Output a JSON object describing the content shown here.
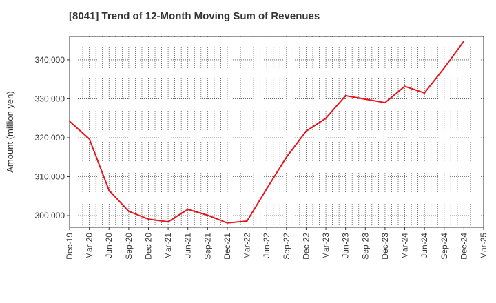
{
  "chart_data": {
    "type": "line",
    "title": "[8041]  Trend of 12-Month Moving Sum of Revenues",
    "xlabel": "",
    "ylabel": "Amount (million yen)",
    "x_ticks": [
      "Dec-19",
      "Mar-20",
      "Jun-20",
      "Sep-20",
      "Dec-20",
      "Mar-21",
      "Jun-21",
      "Sep-21",
      "Dec-21",
      "Mar-22",
      "Jun-22",
      "Sep-22",
      "Dec-22",
      "Mar-23",
      "Jun-23",
      "Sep-23",
      "Dec-23",
      "Mar-24",
      "Jun-24",
      "Sep-24",
      "Dec-24",
      "Mar-25"
    ],
    "y_ticks": [
      "300,000",
      "310,000",
      "320,000",
      "330,000",
      "340,000"
    ],
    "y_tick_values": [
      300000,
      310000,
      320000,
      330000,
      340000
    ],
    "ylim": [
      297000,
      346000
    ],
    "grid": true,
    "line_color": "#e8141c",
    "series": [
      {
        "x": [
          "Dec-19",
          "Mar-20",
          "Jun-20",
          "Sep-20",
          "Dec-20",
          "Mar-21",
          "Jun-21",
          "Sep-21",
          "Dec-21",
          "Mar-22",
          "Jun-22",
          "Sep-22",
          "Dec-22",
          "Mar-23",
          "Jun-23",
          "Sep-23",
          "Dec-23",
          "Mar-24",
          "Jun-24",
          "Sep-24",
          "Dec-24"
        ],
        "values": [
          324200,
          319700,
          306500,
          301100,
          299100,
          298400,
          301600,
          300100,
          298100,
          298600,
          306900,
          315000,
          321700,
          325000,
          330800,
          329900,
          329000,
          333200,
          331500,
          337900,
          344800
        ]
      }
    ]
  }
}
